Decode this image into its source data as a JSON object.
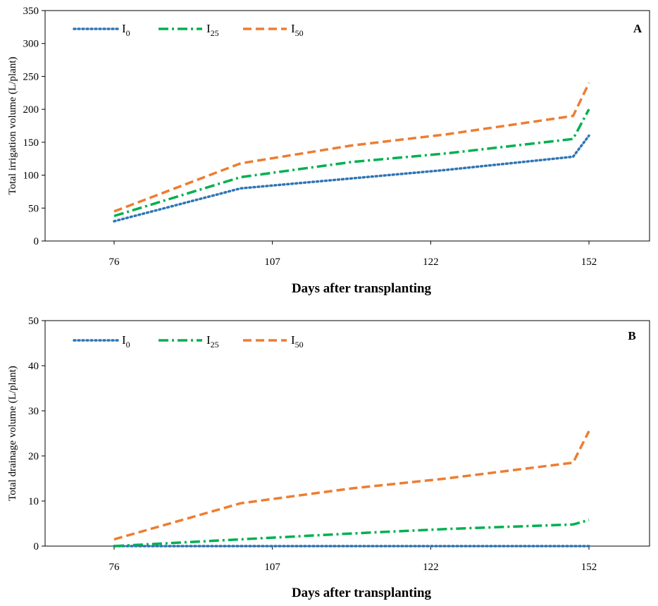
{
  "figure": {
    "panels": [
      "A",
      "B"
    ]
  },
  "chart_data": [
    {
      "type": "line",
      "panel_label": "A",
      "title": "",
      "xlabel": "Days after transplanting",
      "ylabel": "Total irrigation volume (L/plant)",
      "categories": [
        "76",
        "107",
        "122",
        "152"
      ],
      "ylim": [
        0,
        350
      ],
      "yticks": [
        "0",
        "50",
        "100",
        "150",
        "200",
        "250",
        "300",
        "350"
      ],
      "ytick_values": [
        0,
        50,
        100,
        150,
        200,
        250,
        300,
        350
      ],
      "grid": false,
      "legend_position": "top-left",
      "x": [
        0,
        0.8,
        1.5,
        2.1,
        2.9,
        3
      ],
      "series": [
        {
          "name": "I",
          "sub": "0",
          "color": "#2E75B6",
          "dash": "dotted",
          "values": [
            30,
            80,
            95,
            108,
            128,
            160
          ]
        },
        {
          "name": "I",
          "sub": "25",
          "color": "#00B050",
          "dash": "dashdot",
          "values": [
            38,
            97,
            120,
            133,
            155,
            200
          ]
        },
        {
          "name": "I",
          "sub": "50",
          "color": "#ED7D31",
          "dash": "dashed",
          "values": [
            45,
            118,
            145,
            162,
            190,
            240
          ]
        }
      ]
    },
    {
      "type": "line",
      "panel_label": "B",
      "title": "",
      "xlabel": "Days after transplanting",
      "ylabel": "Total drainage volume (L/plant)",
      "categories": [
        "76",
        "107",
        "122",
        "152"
      ],
      "ylim": [
        0,
        50
      ],
      "yticks": [
        "0",
        "10",
        "20",
        "30",
        "40",
        "50"
      ],
      "ytick_values": [
        0,
        10,
        20,
        30,
        40,
        50
      ],
      "grid": false,
      "legend_position": "top-left",
      "x": [
        0,
        0.8,
        1.5,
        2.1,
        2.9,
        3
      ],
      "series": [
        {
          "name": "I",
          "sub": "0",
          "color": "#2E75B6",
          "dash": "dotted",
          "values": [
            0,
            0,
            0,
            0,
            0,
            0
          ]
        },
        {
          "name": "I",
          "sub": "25",
          "color": "#00B050",
          "dash": "dashdot",
          "values": [
            0,
            1.5,
            2.8,
            3.8,
            4.8,
            5.8
          ]
        },
        {
          "name": "I",
          "sub": "50",
          "color": "#ED7D31",
          "dash": "dashed",
          "values": [
            1.5,
            9.5,
            12.8,
            15,
            18.5,
            25.5
          ]
        }
      ]
    }
  ]
}
